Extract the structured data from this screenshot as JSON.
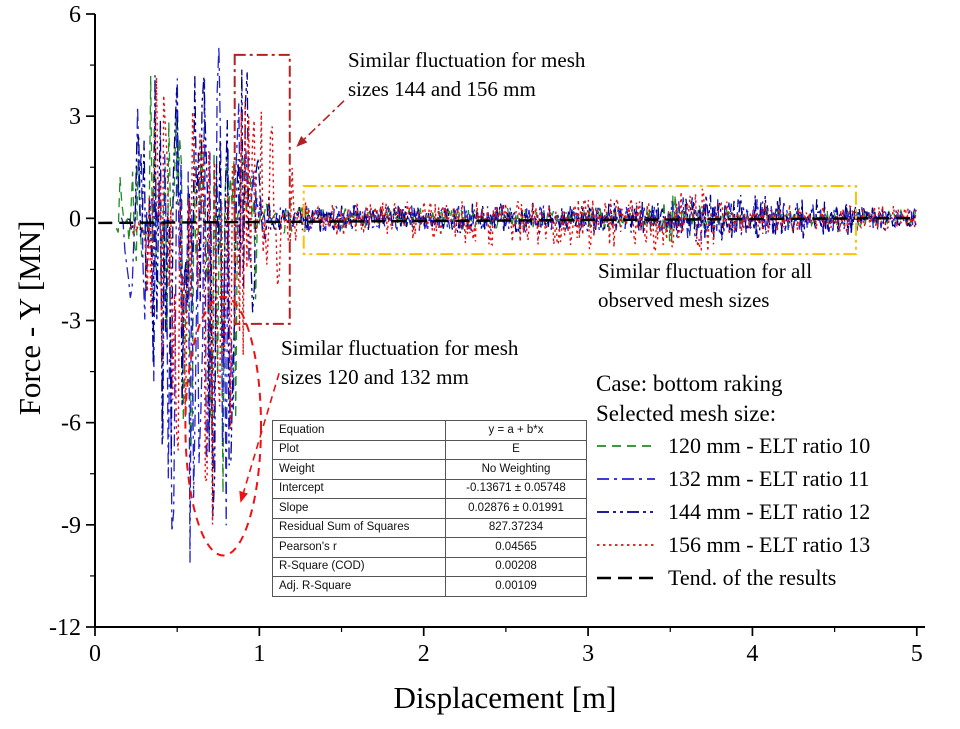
{
  "chart_data": {
    "type": "line",
    "title": "",
    "xlabel": "Displacement [m]",
    "ylabel": "Force - Y [MN]",
    "xlim": [
      0,
      5.05
    ],
    "ylim": [
      -12,
      6
    ],
    "xticks": [
      0,
      1,
      2,
      3,
      4,
      5
    ],
    "yticks": [
      -12,
      -9,
      -6,
      -3,
      0,
      3,
      6
    ],
    "x_minor_step": 0.5,
    "y_minor_step": 1.5,
    "grid": false,
    "legend_position": "inside-right-bottom",
    "series": [
      {
        "name": "120 mm - ELT ratio 10",
        "color": "#228B22",
        "dash": "9 6",
        "width": 1.3,
        "seed": 7,
        "envelope": [
          [
            0.13,
            0.3,
            0.3
          ],
          [
            0.22,
            4.4,
            2.0
          ],
          [
            0.38,
            4.5,
            3.0
          ],
          [
            0.52,
            3.0,
            6.5
          ],
          [
            0.72,
            2.6,
            9.6
          ],
          [
            0.9,
            2.0,
            8.5
          ],
          [
            1.0,
            0.5,
            0.6
          ],
          [
            1.3,
            0.3,
            0.3
          ],
          [
            3.35,
            0.35,
            0.35
          ],
          [
            3.55,
            0.8,
            0.8
          ],
          [
            3.75,
            0.3,
            0.3
          ],
          [
            5.0,
            0.25,
            0.25
          ]
        ]
      },
      {
        "name": "132 mm - ELT ratio 11",
        "color": "#2121CF",
        "dash": "12 5 3 5",
        "width": 1.3,
        "seed": 13,
        "envelope": [
          [
            0.16,
            0.4,
            0.4
          ],
          [
            0.26,
            5.2,
            4.0
          ],
          [
            0.45,
            5.5,
            10.4
          ],
          [
            0.62,
            5.3,
            10.8
          ],
          [
            0.82,
            5.0,
            10.4
          ],
          [
            0.95,
            2.0,
            3.0
          ],
          [
            1.05,
            0.4,
            0.4
          ],
          [
            3.4,
            0.4,
            0.4
          ],
          [
            3.6,
            0.7,
            0.7
          ],
          [
            5.0,
            0.3,
            0.3
          ]
        ]
      },
      {
        "name": "144 mm - ELT ratio 12",
        "color": "#00008B",
        "dash": "12 4 3 4 3 4",
        "width": 1.3,
        "seed": 21,
        "envelope": [
          [
            0.2,
            0.5,
            0.5
          ],
          [
            0.3,
            5.6,
            4.0
          ],
          [
            0.5,
            5.4,
            11.0
          ],
          [
            0.75,
            5.3,
            10.6
          ],
          [
            0.95,
            4.6,
            3.0
          ],
          [
            1.1,
            0.4,
            0.4
          ],
          [
            3.5,
            0.5,
            0.5
          ],
          [
            3.65,
            0.9,
            0.9
          ],
          [
            5.0,
            0.3,
            0.3
          ]
        ]
      },
      {
        "name": "156 mm - ELT ratio 13",
        "color": "#E01212",
        "dash": "2.5 3.5",
        "width": 1.4,
        "seed": 29,
        "envelope": [
          [
            0.22,
            0.5,
            0.5
          ],
          [
            0.35,
            4.6,
            3.0
          ],
          [
            0.55,
            4.7,
            10.2
          ],
          [
            0.8,
            4.7,
            10.0
          ],
          [
            1.0,
            4.7,
            3.2
          ],
          [
            1.15,
            2.0,
            2.0
          ],
          [
            1.3,
            0.45,
            0.45
          ],
          [
            3.45,
            0.6,
            1.1
          ],
          [
            3.65,
            1.0,
            1.4
          ],
          [
            3.85,
            0.5,
            0.5
          ],
          [
            5.0,
            0.35,
            0.35
          ]
        ]
      }
    ],
    "trend": {
      "label": "Tend. of the results",
      "equation": "y = a + b*x",
      "intercept": -0.13671,
      "slope": 0.02876,
      "color": "#000000",
      "dash": "14 7",
      "width": 2.4,
      "x_range": [
        0.02,
        5.0
      ]
    },
    "annotations": [
      {
        "kind": "rect",
        "x0": 0.85,
        "x1": 1.185,
        "y0": -3.1,
        "y1": 4.8,
        "color": "#B22222",
        "dash": "11 4 3 4",
        "width": 2
      },
      {
        "kind": "rect",
        "x0": 1.27,
        "x1": 4.63,
        "y0": -1.05,
        "y1": 0.95,
        "color": "#FFC000",
        "dash": "13 4 3 4 3 4",
        "width": 2
      },
      {
        "kind": "ellipse",
        "cx": 0.78,
        "cy": -6.1,
        "rx": 0.23,
        "ry": 3.8,
        "color": "#EE1111",
        "dash": "8 6",
        "width": 2
      },
      {
        "kind": "arrow",
        "x1": 1.515,
        "y1": 3.45,
        "x2": 1.225,
        "y2": 2.1,
        "color": "#B22222",
        "dash": "9 4 3 4",
        "width": 1.6
      },
      {
        "kind": "arrow",
        "x1": 1.12,
        "y1": -4.55,
        "x2": 0.885,
        "y2": -8.35,
        "color": "#EE1111",
        "dash": "7 5",
        "width": 1.6
      }
    ]
  },
  "legend": {
    "title1": "Case: bottom raking",
    "title2": "Selected mesh size:"
  },
  "callouts": {
    "mesh_144_156": "Similar fluctuation for mesh\nsizes 144 and 156 mm",
    "all_meshes": "Similar fluctuation for all\nobserved mesh sizes",
    "mesh_120_132": "Similar fluctuation for mesh\nsizes 120 and 132 mm"
  },
  "stats_table": {
    "rows": [
      [
        "Equation",
        "y = a + b*x"
      ],
      [
        "Plot",
        "E"
      ],
      [
        "Weight",
        "No Weighting"
      ],
      [
        "Intercept",
        "-0.13671 ± 0.05748"
      ],
      [
        "Slope",
        "0.02876 ± 0.01991"
      ],
      [
        "Residual Sum of Squares",
        "827.37234"
      ],
      [
        "Pearson's r",
        "0.04565"
      ],
      [
        "R-Square (COD)",
        "0.00208"
      ],
      [
        "Adj. R-Square",
        "0.00109"
      ]
    ]
  }
}
